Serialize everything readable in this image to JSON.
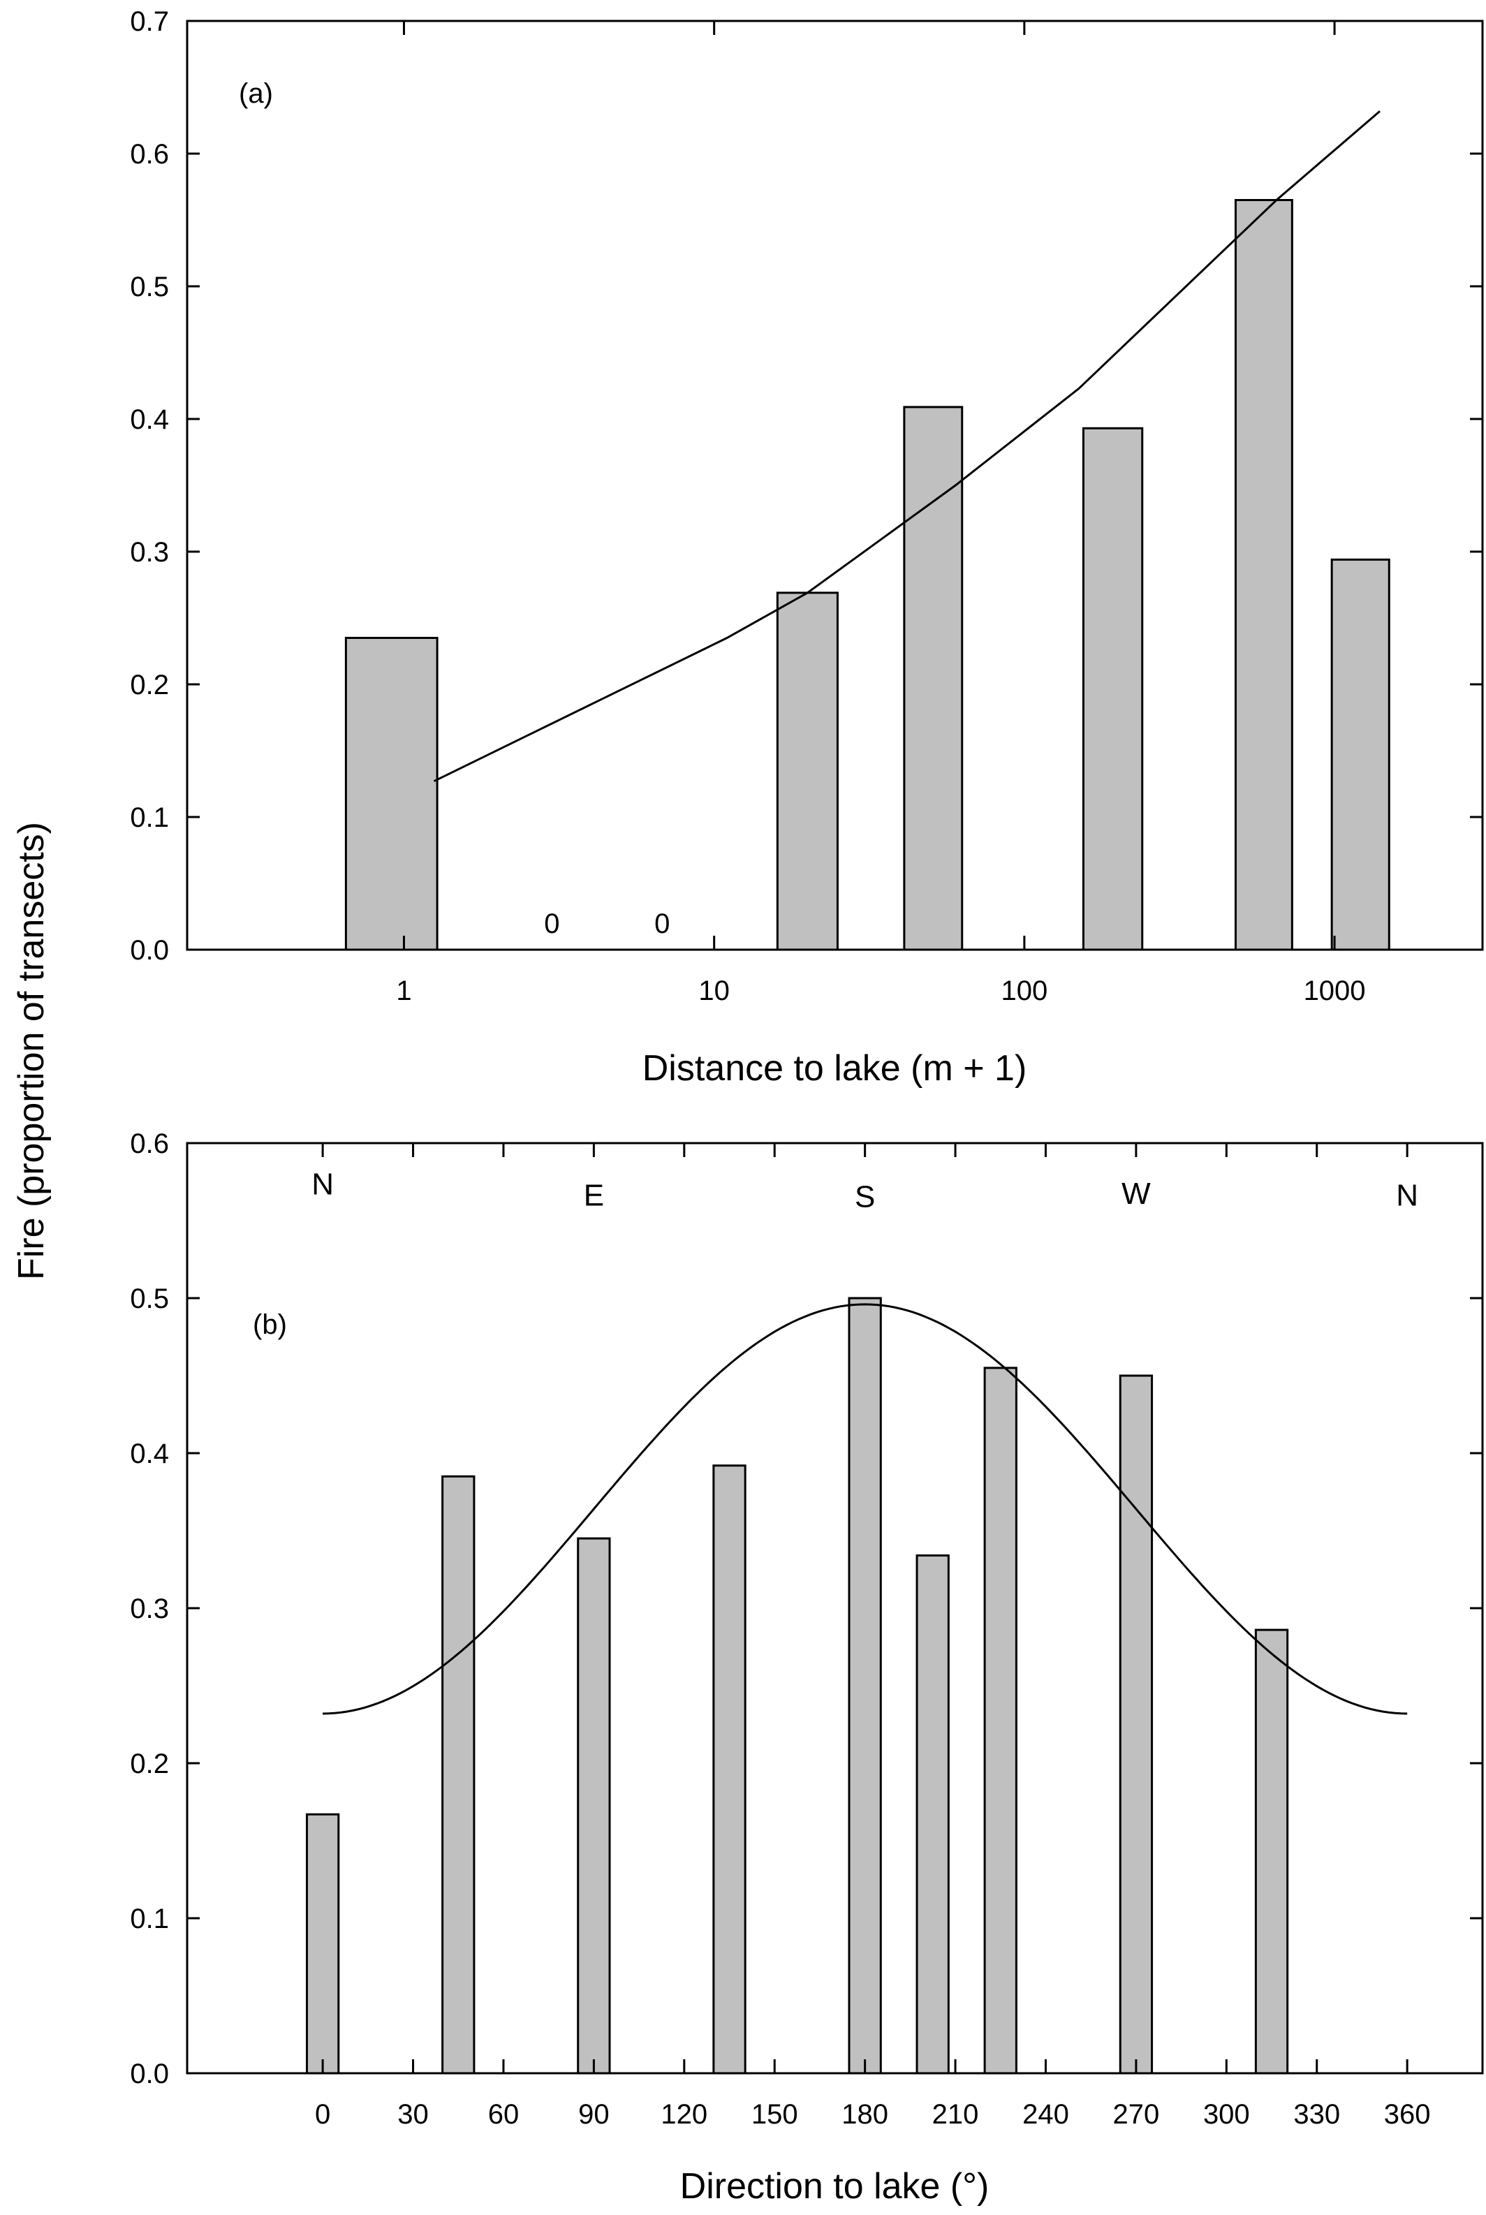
{
  "figure": {
    "shared_ylabel": "Fire (proportion of transects)"
  },
  "chart_data": [
    {
      "type": "bar",
      "panel_label": "(a)",
      "xlabel": "Distance to lake (m + 1)",
      "ylabel": "Fire (proportion of transects)",
      "xscale": "log",
      "xlim": [
        0.2,
        3000
      ],
      "ylim": [
        0.0,
        0.7
      ],
      "xticks": [
        1,
        10,
        100,
        1000
      ],
      "xtick_labels": [
        "1",
        "10",
        "100",
        "1000"
      ],
      "yticks": [
        0.0,
        0.1,
        0.2,
        0.3,
        0.4,
        0.5,
        0.6,
        0.7
      ],
      "ytick_labels": [
        "0.0",
        "0.1",
        "0.2",
        "0.3",
        "0.4",
        "0.5",
        "0.6",
        "0.7"
      ],
      "grid": false,
      "bars": [
        {
          "x_low": 0.65,
          "x_high": 1.28,
          "value": 0.235
        },
        {
          "x_low": 16,
          "x_high": 25,
          "value": 0.269
        },
        {
          "x_low": 41,
          "x_high": 63,
          "value": 0.409
        },
        {
          "x_low": 155,
          "x_high": 240,
          "value": 0.393
        },
        {
          "x_low": 480,
          "x_high": 730,
          "value": 0.565
        },
        {
          "x_low": 980,
          "x_high": 1500,
          "value": 0.294
        }
      ],
      "zero_annotations": [
        {
          "x": 3,
          "text": "0"
        },
        {
          "x": 6.8,
          "text": "0"
        }
      ],
      "fit_line": {
        "x": [
          1.25,
          11,
          20,
          60,
          150,
          650,
          1400
        ],
        "y": [
          0.127,
          0.235,
          0.269,
          0.35,
          0.423,
          0.565,
          0.632
        ]
      }
    },
    {
      "type": "bar",
      "panel_label": "(b)",
      "xlabel": "Direction to lake (°)",
      "ylabel": "Fire (proportion of transects)",
      "xlim": [
        -45,
        385
      ],
      "ylim": [
        0.0,
        0.6
      ],
      "xticks": [
        0,
        30,
        60,
        90,
        120,
        150,
        180,
        210,
        240,
        270,
        300,
        330,
        360
      ],
      "xtick_labels": [
        "0",
        "30",
        "60",
        "90",
        "120",
        "150",
        "180",
        "210",
        "240",
        "270",
        "300",
        "330",
        "360"
      ],
      "yticks": [
        0.0,
        0.1,
        0.2,
        0.3,
        0.4,
        0.5,
        0.6
      ],
      "ytick_labels": [
        "0.0",
        "0.1",
        "0.2",
        "0.3",
        "0.4",
        "0.5",
        "0.6"
      ],
      "grid": false,
      "compass": [
        {
          "x": 0,
          "text": "N",
          "y": 0.574
        },
        {
          "x": 90,
          "text": "E",
          "y": 0.567
        },
        {
          "x": 180,
          "text": "S",
          "y": 0.566
        },
        {
          "x": 270,
          "text": "W",
          "y": 0.568
        },
        {
          "x": 360,
          "text": "N",
          "y": 0.567
        }
      ],
      "bars": [
        {
          "x": 0,
          "value": 0.167
        },
        {
          "x": 45,
          "value": 0.385
        },
        {
          "x": 90,
          "value": 0.345
        },
        {
          "x": 135,
          "value": 0.392
        },
        {
          "x": 180,
          "value": 0.5
        },
        {
          "x": 202.5,
          "value": 0.334
        },
        {
          "x": 225,
          "value": 0.455
        },
        {
          "x": 270,
          "value": 0.45
        },
        {
          "x": 315,
          "value": 0.286
        }
      ],
      "bar_width_deg": 10.5,
      "fit_curve": {
        "form": "y = a + b*(1 - cos(x))/2",
        "a": 0.232,
        "b": 0.264,
        "x_range": [
          0,
          360
        ]
      }
    }
  ]
}
